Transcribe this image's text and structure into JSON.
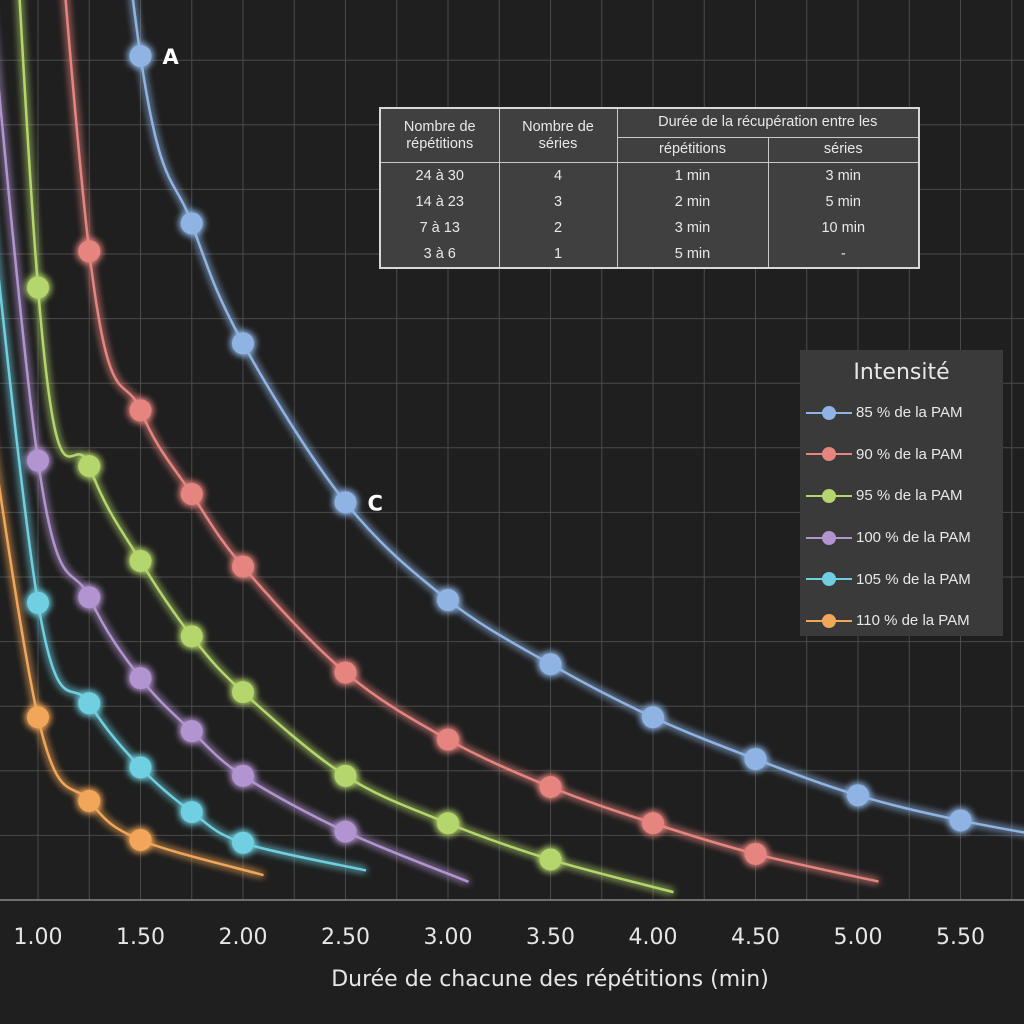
{
  "chart_data": {
    "type": "line",
    "title": "",
    "xlabel": "Durée de chacune des répétitions (min)",
    "ylabel": "",
    "xlim": [
      0.5,
      6.0
    ],
    "x_ticks": [
      1.0,
      1.5,
      2.0,
      2.5,
      3.0,
      3.5,
      4.0,
      4.5,
      5.0,
      5.5
    ],
    "x_tick_labels": [
      "1.00",
      "1.50",
      "2.00",
      "2.50",
      "3.00",
      "3.50",
      "4.00",
      "4.50",
      "5.00",
      "5.50"
    ],
    "grid": true,
    "legend_title": "Intensité",
    "legend_position": "right",
    "series": [
      {
        "name": "85 % de la PAM",
        "color": "#8fb4e3",
        "x": [
          1.5,
          1.75,
          2.0,
          2.5,
          3.0,
          3.5,
          4.0,
          4.5,
          5.0,
          5.5
        ],
        "values": [
          30,
          24,
          19.7,
          14,
          10.5,
          8.2,
          6.3,
          4.8,
          3.5,
          2.6
        ]
      },
      {
        "name": "90 % de la PAM",
        "color": "#e6847f",
        "x": [
          1.25,
          1.5,
          1.75,
          2.0,
          2.5,
          3.0,
          3.5,
          4.0,
          4.5
        ],
        "values": [
          23,
          17.3,
          14.3,
          11.7,
          7.9,
          5.5,
          3.8,
          2.5,
          1.4
        ]
      },
      {
        "name": "95 % de la PAM",
        "color": "#b4d66c",
        "x": [
          1.0,
          1.25,
          1.5,
          1.75,
          2.0,
          2.5,
          3.0,
          3.5
        ],
        "values": [
          21.7,
          15.3,
          11.9,
          9.2,
          7.2,
          4.2,
          2.5,
          1.2
        ]
      },
      {
        "name": "100 % de la PAM",
        "color": "#b294d0",
        "x": [
          1.0,
          1.25,
          1.5,
          1.75,
          2.0,
          2.5
        ],
        "values": [
          15.5,
          10.6,
          7.7,
          5.8,
          4.2,
          2.2
        ]
      },
      {
        "name": "105 % de la PAM",
        "color": "#6fcfe0",
        "x": [
          1.0,
          1.25,
          1.5,
          1.75,
          2.0
        ],
        "values": [
          10.4,
          6.8,
          4.5,
          2.9,
          1.8
        ]
      },
      {
        "name": "110 % de la PAM",
        "color": "#f2a65a",
        "x": [
          1.0,
          1.25,
          1.5
        ],
        "values": [
          6.3,
          3.3,
          1.9
        ]
      }
    ],
    "annotations": [
      {
        "text": "A",
        "x": 1.5,
        "y": 30
      },
      {
        "text": "C",
        "x": 2.5,
        "y": 14
      }
    ]
  },
  "table": {
    "headers": {
      "repetitions": "Nombre de répétitions",
      "series": "Nombre de séries",
      "recovery": "Durée de la récupération entre les",
      "recovery_reps": "répétitions",
      "recovery_series": "séries"
    },
    "rows": [
      {
        "reps": "24 à 30",
        "series": "4",
        "rec_reps": "1 min",
        "rec_series": "3 min"
      },
      {
        "reps": "14 à 23",
        "series": "3",
        "rec_reps": "2 min",
        "rec_series": "5 min"
      },
      {
        "reps": "7 à 13",
        "series": "2",
        "rec_reps": "3 min",
        "rec_series": "10 min"
      },
      {
        "reps": "3 à 6",
        "series": "1",
        "rec_reps": "5 min",
        "rec_series": "-"
      }
    ]
  }
}
